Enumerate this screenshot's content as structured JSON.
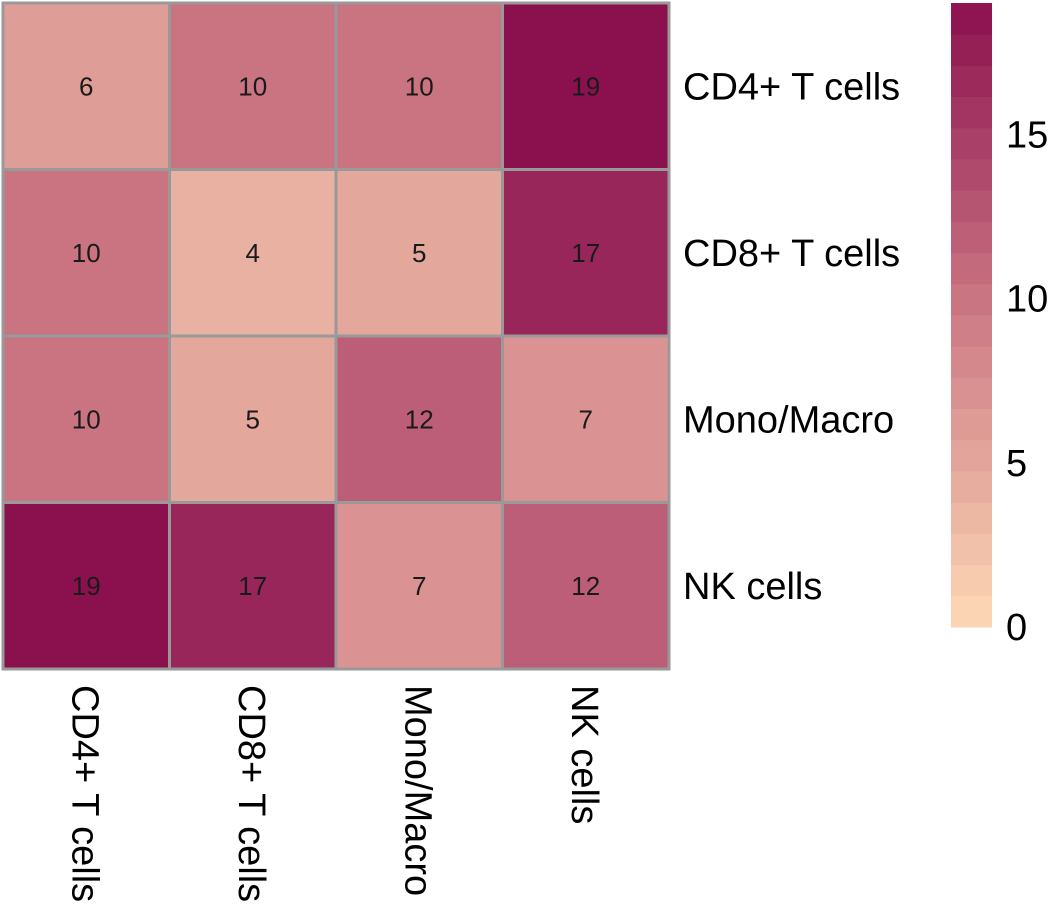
{
  "chart_data": {
    "type": "heatmap",
    "title": "",
    "rows": [
      "CD4+ T cells",
      "CD8+ T cells",
      "Mono/Macro",
      "NK cells"
    ],
    "columns": [
      "CD4+ T cells",
      "CD8+ T cells",
      "Mono/Macro",
      "NK cells"
    ],
    "values": [
      [
        6,
        10,
        10,
        19
      ],
      [
        10,
        4,
        5,
        17
      ],
      [
        10,
        5,
        12,
        7
      ],
      [
        19,
        17,
        7,
        12
      ]
    ],
    "color_range": [
      0,
      19
    ],
    "colors": {
      "low": "#fdd9b5",
      "mid": "#cd7a85",
      "high": "#8b104e",
      "grid": "#999999"
    },
    "legend": {
      "position": "right",
      "ticks": [
        0,
        5,
        10,
        15
      ],
      "tick_labels": [
        "0",
        "5",
        "10",
        "15"
      ]
    }
  }
}
